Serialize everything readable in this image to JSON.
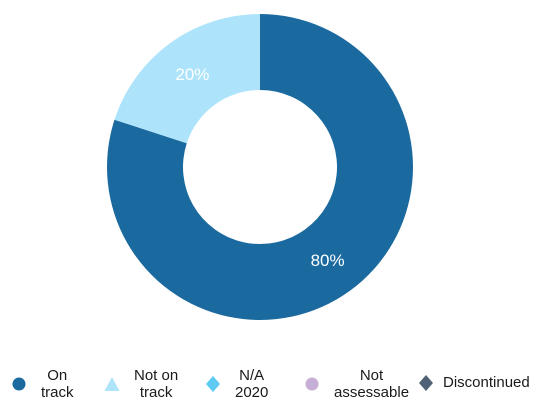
{
  "chart_data": {
    "type": "donut",
    "slices": [
      {
        "name": "On track",
        "value": 80,
        "label": "80%",
        "color": "#1b6a9f"
      },
      {
        "name": "Not on track",
        "value": 20,
        "label": "20%",
        "color": "#ade4fb"
      }
    ]
  },
  "legend": [
    {
      "line1": "On",
      "line2": "track",
      "color": "#1b6a9f",
      "shape": "circle"
    },
    {
      "line1": "Not on",
      "line2": "track",
      "color": "#ade4fb",
      "shape": "triangle"
    },
    {
      "line1": "N/A",
      "line2": "2020",
      "color": "#5ccaf2",
      "shape": "diamond"
    },
    {
      "line1": "Not",
      "line2": "assessable",
      "color": "#c6aed6",
      "shape": "circle"
    },
    {
      "line1": "Discontinued",
      "line2": "",
      "color": "#4f6275",
      "shape": "diamond"
    }
  ]
}
